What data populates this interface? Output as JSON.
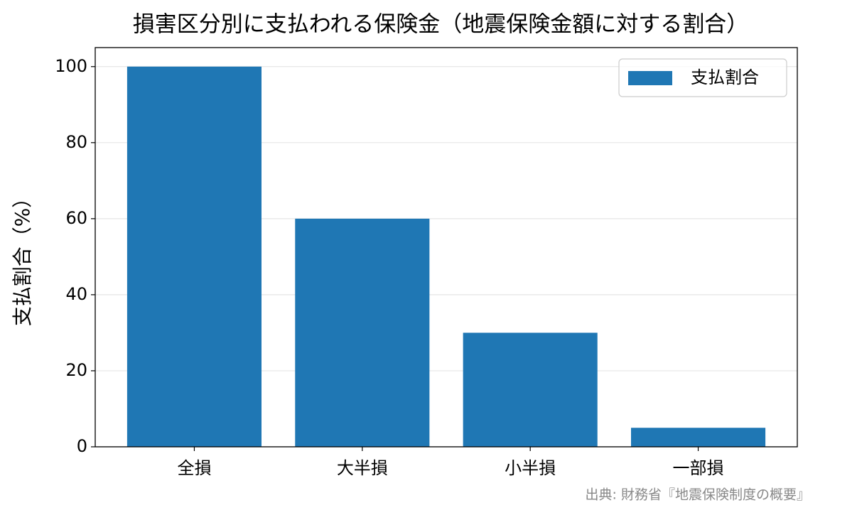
{
  "chart_data": {
    "type": "bar",
    "title": "損害区分別に支払われる保険金（地震保険金額に対する割合）",
    "ylabel": "支払割合（%）",
    "categories": [
      "全損",
      "大半損",
      "小半損",
      "一部損"
    ],
    "series": [
      {
        "name": "支払割合",
        "color": "#1f77b4",
        "values": [
          100,
          60,
          30,
          5
        ]
      }
    ],
    "ylim": [
      0,
      105
    ],
    "yticks": [
      0,
      20,
      40,
      60,
      80,
      100
    ],
    "grid": true,
    "legend": "upper right",
    "source": "出典: 財務省『地震保険制度の概要』"
  }
}
